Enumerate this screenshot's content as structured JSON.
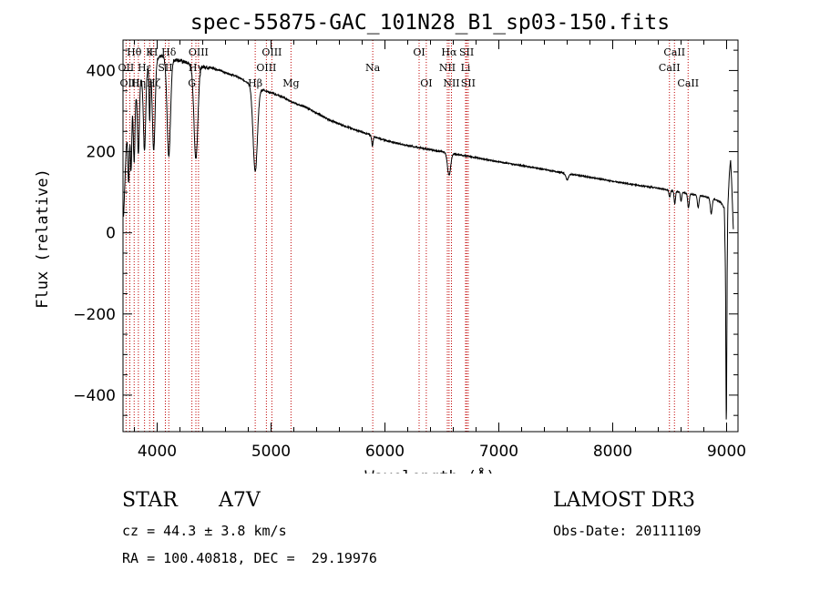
{
  "chart_data": {
    "type": "line",
    "title": "spec-55875-GAC_101N28_B1_sp03-150.fits",
    "xlabel": "Wavelength (Å)",
    "ylabel": "Flux (relative)",
    "xlim": [
      3700,
      9100
    ],
    "ylim": [
      -490,
      475
    ],
    "xticks": [
      4000,
      5000,
      6000,
      7000,
      8000,
      9000
    ],
    "yticks": [
      -400,
      -200,
      0,
      200,
      400
    ],
    "continuum": [
      [
        3705,
        40
      ],
      [
        3730,
        220
      ],
      [
        3780,
        320
      ],
      [
        3830,
        360
      ],
      [
        3880,
        390
      ],
      [
        3930,
        410
      ],
      [
        3980,
        430
      ],
      [
        4030,
        435
      ],
      [
        4100,
        430
      ],
      [
        4200,
        425
      ],
      [
        4300,
        415
      ],
      [
        4400,
        410
      ],
      [
        4500,
        405
      ],
      [
        4600,
        395
      ],
      [
        4700,
        385
      ],
      [
        4800,
        370
      ],
      [
        4900,
        355
      ],
      [
        5000,
        345
      ],
      [
        5100,
        335
      ],
      [
        5200,
        320
      ],
      [
        5300,
        310
      ],
      [
        5400,
        295
      ],
      [
        5500,
        280
      ],
      [
        5600,
        268
      ],
      [
        5700,
        258
      ],
      [
        5800,
        248
      ],
      [
        5900,
        238
      ],
      [
        6000,
        228
      ],
      [
        6200,
        215
      ],
      [
        6400,
        205
      ],
      [
        6600,
        195
      ],
      [
        6800,
        185
      ],
      [
        7000,
        175
      ],
      [
        7200,
        166
      ],
      [
        7400,
        156
      ],
      [
        7600,
        146
      ],
      [
        7800,
        137
      ],
      [
        8000,
        127
      ],
      [
        8200,
        118
      ],
      [
        8400,
        110
      ],
      [
        8600,
        100
      ],
      [
        8800,
        90
      ],
      [
        8900,
        82
      ],
      [
        8950,
        75
      ],
      [
        8980,
        60
      ],
      [
        8990,
        -100
      ],
      [
        8995,
        -400
      ],
      [
        8998,
        -490
      ],
      [
        9005,
        -100
      ],
      [
        9010,
        60
      ],
      [
        9025,
        150
      ],
      [
        9035,
        180
      ],
      [
        9045,
        120
      ],
      [
        9060,
        0
      ]
    ],
    "absorption_features": [
      {
        "wavelength": 3750,
        "depth": 140,
        "width": 6
      },
      {
        "wavelength": 3771,
        "depth": 150,
        "width": 6
      },
      {
        "wavelength": 3798,
        "depth": 160,
        "width": 7
      },
      {
        "wavelength": 3835,
        "depth": 170,
        "width": 8
      },
      {
        "wavelength": 3889,
        "depth": 190,
        "width": 10
      },
      {
        "wavelength": 3934,
        "depth": 130,
        "width": 5
      },
      {
        "wavelength": 3970,
        "depth": 220,
        "width": 12
      },
      {
        "wavelength": 4102,
        "depth": 240,
        "width": 15
      },
      {
        "wavelength": 4340,
        "depth": 230,
        "width": 17
      },
      {
        "wavelength": 4861,
        "depth": 210,
        "width": 19
      },
      {
        "wavelength": 5890,
        "depth": 25,
        "width": 6
      },
      {
        "wavelength": 6563,
        "depth": 55,
        "width": 14
      },
      {
        "wavelength": 7600,
        "depth": 15,
        "width": 12
      },
      {
        "wavelength": 8500,
        "depth": 18,
        "width": 6
      },
      {
        "wavelength": 8545,
        "depth": 30,
        "width": 6
      },
      {
        "wavelength": 8600,
        "depth": 22,
        "width": 6
      },
      {
        "wavelength": 8665,
        "depth": 35,
        "width": 7
      },
      {
        "wavelength": 8750,
        "depth": 30,
        "width": 7
      },
      {
        "wavelength": 8865,
        "depth": 38,
        "width": 8
      }
    ],
    "spectral_lines": [
      {
        "label": "Hθ",
        "wavelength": 3798,
        "row": 1
      },
      {
        "label": "OII",
        "wavelength": 3727,
        "row": 2
      },
      {
        "label": "OIII",
        "wavelength": 3760,
        "row": 3
      },
      {
        "label": "K",
        "wavelength": 3934,
        "row": 1
      },
      {
        "label": "Hε",
        "wavelength": 3889,
        "row": 2
      },
      {
        "label": "Hη",
        "wavelength": 3835,
        "row": 3
      },
      {
        "label": "H",
        "wavelength": 3968,
        "row": 1
      },
      {
        "label": "SII",
        "wavelength": 4072,
        "row": 2
      },
      {
        "label": "Hζ",
        "wavelength": 3970,
        "row": 3
      },
      {
        "label": "Hδ",
        "wavelength": 4102,
        "row": 1
      },
      {
        "label": "OIII",
        "wavelength": 4363,
        "row": 1
      },
      {
        "label": "Hγ",
        "wavelength": 4340,
        "row": 2
      },
      {
        "label": "G",
        "wavelength": 4305,
        "row": 3
      },
      {
        "label": "OIII",
        "wavelength": 5007,
        "row": 1
      },
      {
        "label": "OIII",
        "wavelength": 4959,
        "row": 2
      },
      {
        "label": "Hβ",
        "wavelength": 4861,
        "row": 3
      },
      {
        "label": "Mg",
        "wavelength": 5175,
        "row": 3
      },
      {
        "label": "Na",
        "wavelength": 5893,
        "row": 2
      },
      {
        "label": "OI",
        "wavelength": 6300,
        "row": 1
      },
      {
        "label": "OI",
        "wavelength": 6363,
        "row": 3
      },
      {
        "label": "Hα",
        "wavelength": 6563,
        "row": 1
      },
      {
        "label": "NII",
        "wavelength": 6548,
        "row": 2
      },
      {
        "label": "NII",
        "wavelength": 6584,
        "row": 3
      },
      {
        "label": "SII",
        "wavelength": 6717,
        "row": 1
      },
      {
        "label": "Li",
        "wavelength": 6708,
        "row": 2
      },
      {
        "label": "SII",
        "wavelength": 6731,
        "row": 3
      },
      {
        "label": "CaII",
        "wavelength": 8542,
        "row": 1
      },
      {
        "label": "CaII",
        "wavelength": 8498,
        "row": 2
      },
      {
        "label": "CaII",
        "wavelength": 8662,
        "row": 3
      }
    ]
  },
  "info": {
    "class": "STAR",
    "subclass": "A7V",
    "survey": "LAMOST DR3",
    "redshift": "cz = 44.3 ± 3.8 km/s",
    "obs_date": "Obs-Date: 20111109",
    "coords": "RA = 100.40818, DEC =  29.19976"
  },
  "colors": {
    "spectrum": "#000000",
    "line_marker": "#c00000",
    "axes": "#000000"
  }
}
